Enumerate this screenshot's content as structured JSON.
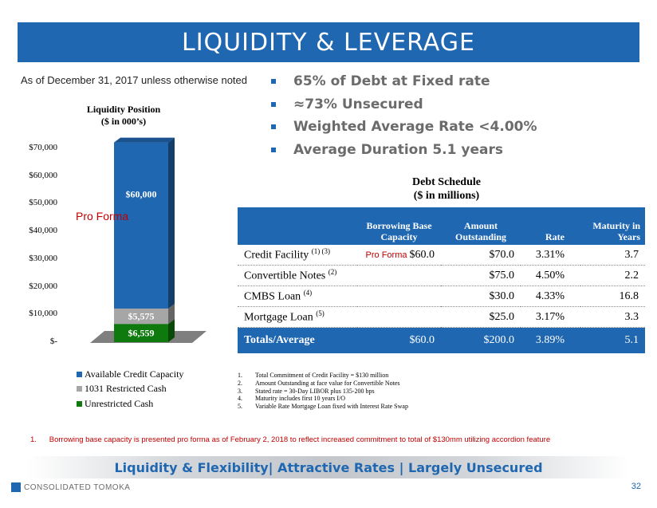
{
  "title": "LIQUIDITY & LEVERAGE",
  "as_of": "As of December 31, 2017 unless otherwise noted",
  "bullets": [
    "65% of Debt at Fixed rate",
    "≈73% Unsecured",
    "Weighted Average Rate <4.00%",
    "Average Duration 5.1 years"
  ],
  "chart_data": {
    "type": "bar",
    "stacked": true,
    "title": "Liquidity Position",
    "subtitle": "($ in 000’s)",
    "categories": [
      ""
    ],
    "series": [
      {
        "name": "Unrestricted Cash",
        "values": [
          6559
        ],
        "label": "$6,559",
        "color": "#0e7a0e"
      },
      {
        "name": "1031 Restricted Cash",
        "values": [
          5575
        ],
        "label": "$5,575",
        "color": "#a6a6a6"
      },
      {
        "name": "Available Credit Capacity",
        "values": [
          60000
        ],
        "label": "$60,000",
        "color": "#1f67b1"
      }
    ],
    "ylim": [
      0,
      70000
    ],
    "yticks": [
      "$-",
      "$10,000",
      "$20,000",
      "$30,000",
      "$40,000",
      "$50,000",
      "$60,000",
      "$70,000"
    ],
    "legend_position": "bottom",
    "annotation": "Pro Forma"
  },
  "legend_order": [
    {
      "name": "Available Credit Capacity",
      "color": "#1f67b1"
    },
    {
      "name": "1031 Restricted Cash",
      "color": "#a6a6a6"
    },
    {
      "name": "Unrestricted Cash",
      "color": "#0e7a0e"
    }
  ],
  "debt": {
    "title": "Debt Schedule",
    "subtitle": "($ in millions)",
    "headers": [
      "",
      "Borrowing Base Capacity",
      "Amount Outstanding",
      "Rate",
      "Maturity in Years"
    ],
    "rows": [
      {
        "name": "Credit Facility",
        "sup": "(1) (3)",
        "tag": "Pro Forma",
        "base": "$60.0",
        "amount": "$70.0",
        "rate": "3.31%",
        "maturity": "3.7"
      },
      {
        "name": "Convertible Notes",
        "sup": "(2)",
        "tag": "",
        "base": "",
        "amount": "$75.0",
        "rate": "4.50%",
        "maturity": "2.2"
      },
      {
        "name": "CMBS Loan",
        "sup": "(4)",
        "tag": "",
        "base": "",
        "amount": "$30.0",
        "rate": "4.33%",
        "maturity": "16.8"
      },
      {
        "name": "Mortgage Loan",
        "sup": "(5)",
        "tag": "",
        "base": "",
        "amount": "$25.0",
        "rate": "3.17%",
        "maturity": "3.3"
      }
    ],
    "total": {
      "name": "Totals/Average",
      "base": "$60.0",
      "amount": "$200.0",
      "rate": "3.89%",
      "maturity": "5.1"
    },
    "notes": [
      "Total Commitment of Credit Facility = $130 million",
      "Amount Outstanding at face value for Convertible Notes",
      "Stated rate = 30-Day LIBOR plus 135-200 bps",
      "Maturity includes first 10 years I/O",
      "Variable Rate Mortgage Loan fixed with Interest Rate Swap"
    ]
  },
  "footnote": "1.      Borrowing base capacity is presented pro forma as of February 2, 2018 to reflect increased commitment to total of $130mm utilizing accordion feature",
  "banner": "Liquidity & Flexibility| Attractive Rates | Largely Unsecured",
  "company": "CONSOLIDATED TOMOKA",
  "page_number": "32"
}
